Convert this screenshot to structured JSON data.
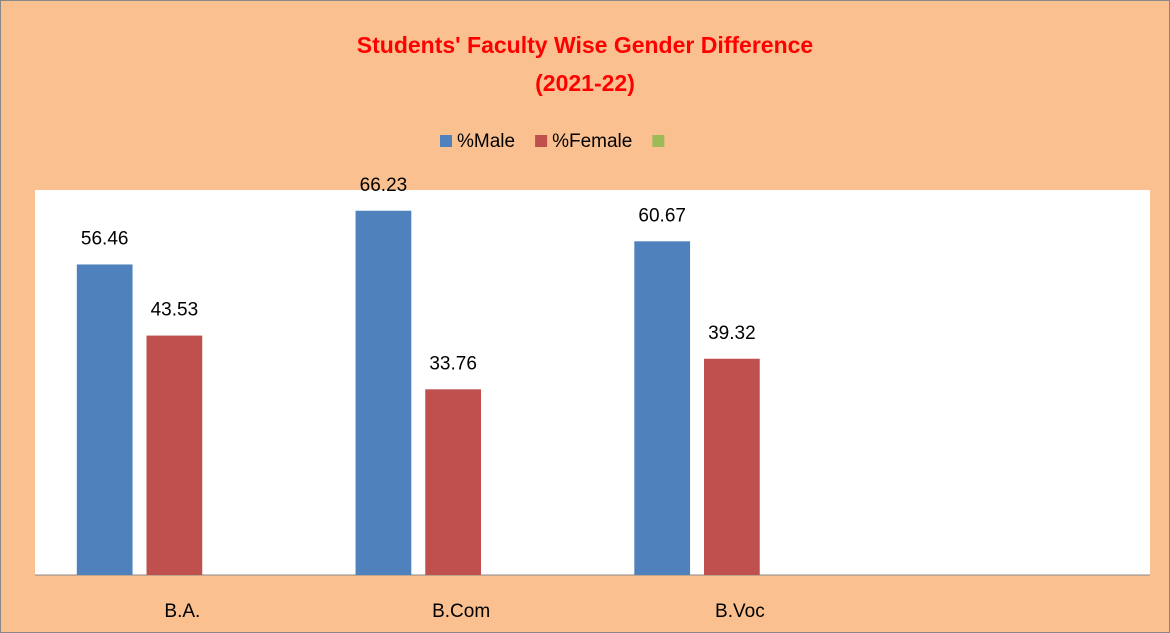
{
  "chart_data": {
    "type": "bar",
    "title": [
      "Students' Faculty Wise Gender Difference",
      "(2021-22)"
    ],
    "categories": [
      "B.A.",
      "B.Com",
      "B.Voc",
      null
    ],
    "series": [
      {
        "name": "%Male",
        "color": "#4f81bd",
        "values": [
          56.46,
          66.23,
          60.67,
          null
        ]
      },
      {
        "name": "%Female",
        "color": "#c0504d",
        "values": [
          43.53,
          33.76,
          39.32,
          null
        ]
      },
      {
        "color": "#9bbb59",
        "values": [
          null,
          null,
          null,
          null
        ]
      }
    ],
    "ylim": [
      0,
      70
    ],
    "grid": false,
    "legend": "top"
  }
}
